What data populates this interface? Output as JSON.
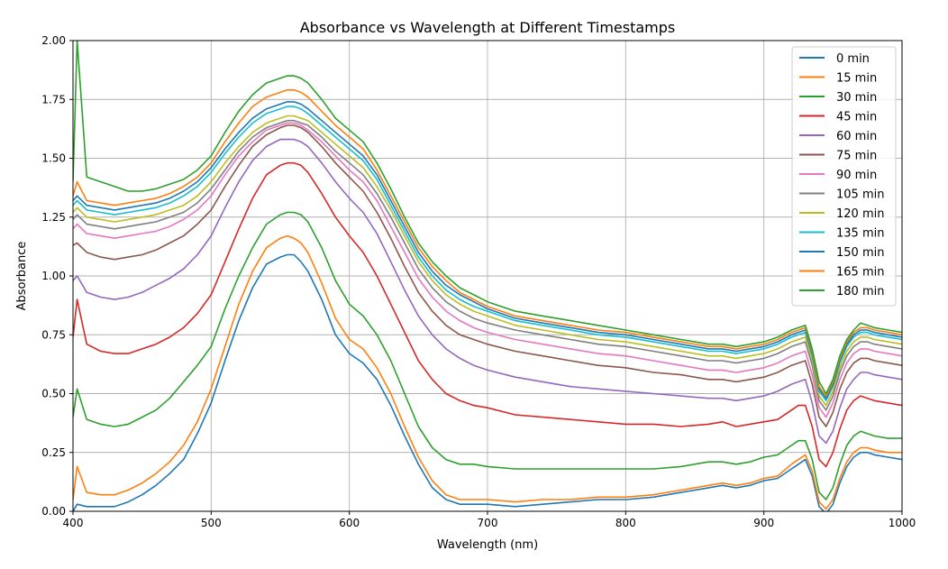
{
  "chart_data": {
    "type": "line",
    "title": "Absorbance vs Wavelength at Different Timestamps",
    "xlabel": "Wavelength (nm)",
    "ylabel": "Absorbance",
    "xlim": [
      400,
      1000
    ],
    "ylim": [
      0,
      2
    ],
    "x_ticks": [
      400,
      500,
      600,
      700,
      800,
      900,
      1000
    ],
    "x_tick_labels": [
      "400",
      "500",
      "600",
      "700",
      "800",
      "900",
      "1000"
    ],
    "y_ticks": [
      0,
      0.25,
      0.5,
      0.75,
      1.0,
      1.25,
      1.5,
      1.75,
      2.0
    ],
    "y_tick_labels": [
      "0.00",
      "0.25",
      "0.50",
      "0.75",
      "1.00",
      "1.25",
      "1.50",
      "1.75",
      "2.00"
    ],
    "grid": true,
    "legend_position": "top-right",
    "x": [
      400,
      403,
      410,
      420,
      430,
      440,
      450,
      460,
      470,
      480,
      490,
      500,
      510,
      520,
      530,
      540,
      550,
      555,
      560,
      565,
      570,
      580,
      590,
      600,
      610,
      620,
      630,
      640,
      650,
      660,
      670,
      680,
      690,
      700,
      720,
      740,
      760,
      780,
      800,
      820,
      840,
      860,
      870,
      880,
      890,
      900,
      910,
      920,
      925,
      930,
      935,
      940,
      945,
      950,
      955,
      960,
      965,
      970,
      975,
      980,
      990,
      1000
    ],
    "series": [
      {
        "name": "0 min",
        "color": "#1f77b4",
        "values": [
          0.0,
          0.03,
          0.02,
          0.02,
          0.02,
          0.04,
          0.07,
          0.11,
          0.16,
          0.22,
          0.33,
          0.46,
          0.64,
          0.81,
          0.95,
          1.05,
          1.08,
          1.09,
          1.09,
          1.06,
          1.02,
          0.9,
          0.75,
          0.67,
          0.63,
          0.56,
          0.45,
          0.32,
          0.2,
          0.1,
          0.05,
          0.03,
          0.03,
          0.03,
          0.02,
          0.03,
          0.04,
          0.05,
          0.05,
          0.06,
          0.08,
          0.1,
          0.11,
          0.1,
          0.11,
          0.13,
          0.14,
          0.18,
          0.2,
          0.22,
          0.15,
          0.02,
          -0.01,
          0.03,
          0.12,
          0.19,
          0.23,
          0.25,
          0.25,
          0.24,
          0.23,
          0.22
        ]
      },
      {
        "name": "15 min",
        "color": "#ff7f0e",
        "values": [
          0.05,
          0.19,
          0.08,
          0.07,
          0.07,
          0.09,
          0.12,
          0.16,
          0.21,
          0.28,
          0.38,
          0.52,
          0.7,
          0.88,
          1.02,
          1.12,
          1.16,
          1.17,
          1.16,
          1.14,
          1.1,
          0.97,
          0.82,
          0.73,
          0.69,
          0.61,
          0.5,
          0.36,
          0.23,
          0.13,
          0.07,
          0.05,
          0.05,
          0.05,
          0.04,
          0.05,
          0.05,
          0.06,
          0.06,
          0.07,
          0.09,
          0.11,
          0.12,
          0.11,
          0.12,
          0.14,
          0.15,
          0.2,
          0.22,
          0.24,
          0.17,
          0.04,
          0.01,
          0.05,
          0.14,
          0.21,
          0.25,
          0.27,
          0.27,
          0.26,
          0.25,
          0.25
        ]
      },
      {
        "name": "30 min",
        "color": "#2ca02c",
        "values": [
          0.4,
          0.52,
          0.39,
          0.37,
          0.36,
          0.37,
          0.4,
          0.43,
          0.48,
          0.55,
          0.62,
          0.7,
          0.86,
          1.0,
          1.12,
          1.22,
          1.26,
          1.27,
          1.27,
          1.26,
          1.23,
          1.12,
          0.98,
          0.88,
          0.83,
          0.75,
          0.64,
          0.5,
          0.36,
          0.27,
          0.22,
          0.2,
          0.2,
          0.19,
          0.18,
          0.18,
          0.18,
          0.18,
          0.18,
          0.18,
          0.19,
          0.21,
          0.21,
          0.2,
          0.21,
          0.23,
          0.24,
          0.28,
          0.3,
          0.3,
          0.22,
          0.08,
          0.05,
          0.1,
          0.2,
          0.28,
          0.32,
          0.34,
          0.33,
          0.32,
          0.31,
          0.31
        ]
      },
      {
        "name": "45 min",
        "color": "#d62728",
        "values": [
          0.74,
          0.9,
          0.71,
          0.68,
          0.67,
          0.67,
          0.69,
          0.71,
          0.74,
          0.78,
          0.84,
          0.92,
          1.06,
          1.2,
          1.33,
          1.43,
          1.47,
          1.48,
          1.48,
          1.47,
          1.44,
          1.35,
          1.25,
          1.17,
          1.1,
          1.0,
          0.88,
          0.76,
          0.64,
          0.56,
          0.5,
          0.47,
          0.45,
          0.44,
          0.41,
          0.4,
          0.39,
          0.38,
          0.37,
          0.37,
          0.36,
          0.37,
          0.38,
          0.36,
          0.37,
          0.38,
          0.39,
          0.43,
          0.45,
          0.45,
          0.36,
          0.22,
          0.19,
          0.25,
          0.35,
          0.43,
          0.47,
          0.49,
          0.48,
          0.47,
          0.46,
          0.45
        ]
      },
      {
        "name": "60 min",
        "color": "#9467bd",
        "values": [
          0.98,
          1.0,
          0.93,
          0.91,
          0.9,
          0.91,
          0.93,
          0.96,
          0.99,
          1.03,
          1.09,
          1.17,
          1.29,
          1.4,
          1.49,
          1.55,
          1.58,
          1.58,
          1.58,
          1.57,
          1.55,
          1.48,
          1.4,
          1.33,
          1.27,
          1.18,
          1.06,
          0.94,
          0.83,
          0.75,
          0.69,
          0.65,
          0.62,
          0.6,
          0.57,
          0.55,
          0.53,
          0.52,
          0.51,
          0.5,
          0.49,
          0.48,
          0.48,
          0.47,
          0.48,
          0.49,
          0.51,
          0.54,
          0.55,
          0.56,
          0.46,
          0.32,
          0.29,
          0.34,
          0.44,
          0.52,
          0.56,
          0.59,
          0.59,
          0.58,
          0.57,
          0.56
        ]
      },
      {
        "name": "75 min",
        "color": "#8c564b",
        "values": [
          1.13,
          1.14,
          1.1,
          1.08,
          1.07,
          1.08,
          1.09,
          1.11,
          1.14,
          1.17,
          1.22,
          1.28,
          1.38,
          1.47,
          1.55,
          1.6,
          1.63,
          1.64,
          1.64,
          1.63,
          1.61,
          1.55,
          1.48,
          1.42,
          1.36,
          1.27,
          1.16,
          1.04,
          0.93,
          0.85,
          0.79,
          0.75,
          0.73,
          0.71,
          0.68,
          0.66,
          0.64,
          0.62,
          0.61,
          0.59,
          0.58,
          0.56,
          0.56,
          0.55,
          0.56,
          0.57,
          0.59,
          0.62,
          0.63,
          0.64,
          0.54,
          0.4,
          0.36,
          0.42,
          0.52,
          0.59,
          0.63,
          0.65,
          0.65,
          0.64,
          0.63,
          0.62
        ]
      },
      {
        "name": "90 min",
        "color": "#e377c2",
        "values": [
          1.2,
          1.22,
          1.18,
          1.17,
          1.16,
          1.17,
          1.18,
          1.19,
          1.21,
          1.24,
          1.28,
          1.34,
          1.43,
          1.51,
          1.57,
          1.62,
          1.64,
          1.65,
          1.65,
          1.64,
          1.62,
          1.57,
          1.51,
          1.45,
          1.4,
          1.32,
          1.21,
          1.1,
          0.99,
          0.91,
          0.85,
          0.81,
          0.78,
          0.76,
          0.73,
          0.71,
          0.69,
          0.67,
          0.66,
          0.64,
          0.62,
          0.6,
          0.6,
          0.59,
          0.6,
          0.61,
          0.63,
          0.66,
          0.67,
          0.68,
          0.58,
          0.44,
          0.4,
          0.46,
          0.56,
          0.63,
          0.67,
          0.69,
          0.69,
          0.68,
          0.67,
          0.66
        ]
      },
      {
        "name": "105 min",
        "color": "#7f7f7f",
        "values": [
          1.24,
          1.26,
          1.22,
          1.21,
          1.2,
          1.21,
          1.22,
          1.23,
          1.25,
          1.27,
          1.31,
          1.37,
          1.45,
          1.53,
          1.59,
          1.63,
          1.65,
          1.66,
          1.66,
          1.65,
          1.64,
          1.59,
          1.53,
          1.48,
          1.43,
          1.35,
          1.25,
          1.14,
          1.03,
          0.95,
          0.89,
          0.85,
          0.82,
          0.8,
          0.77,
          0.75,
          0.73,
          0.71,
          0.7,
          0.68,
          0.66,
          0.64,
          0.64,
          0.63,
          0.64,
          0.65,
          0.67,
          0.7,
          0.71,
          0.72,
          0.62,
          0.47,
          0.43,
          0.49,
          0.59,
          0.66,
          0.7,
          0.72,
          0.72,
          0.71,
          0.7,
          0.69
        ]
      },
      {
        "name": "120 min",
        "color": "#bcbd22",
        "values": [
          1.27,
          1.29,
          1.25,
          1.24,
          1.23,
          1.24,
          1.25,
          1.26,
          1.28,
          1.3,
          1.34,
          1.4,
          1.48,
          1.55,
          1.61,
          1.65,
          1.67,
          1.68,
          1.68,
          1.67,
          1.66,
          1.61,
          1.56,
          1.51,
          1.46,
          1.38,
          1.28,
          1.17,
          1.06,
          0.98,
          0.92,
          0.88,
          0.85,
          0.83,
          0.79,
          0.77,
          0.75,
          0.73,
          0.72,
          0.7,
          0.68,
          0.66,
          0.66,
          0.65,
          0.66,
          0.67,
          0.69,
          0.72,
          0.73,
          0.74,
          0.64,
          0.49,
          0.45,
          0.51,
          0.61,
          0.68,
          0.72,
          0.74,
          0.74,
          0.73,
          0.72,
          0.71
        ]
      },
      {
        "name": "135 min",
        "color": "#17becf",
        "values": [
          1.3,
          1.32,
          1.28,
          1.27,
          1.26,
          1.27,
          1.28,
          1.29,
          1.31,
          1.34,
          1.38,
          1.44,
          1.52,
          1.59,
          1.65,
          1.69,
          1.71,
          1.72,
          1.72,
          1.71,
          1.69,
          1.64,
          1.59,
          1.54,
          1.49,
          1.41,
          1.3,
          1.19,
          1.08,
          1.0,
          0.94,
          0.9,
          0.87,
          0.85,
          0.81,
          0.79,
          0.77,
          0.75,
          0.74,
          0.72,
          0.7,
          0.68,
          0.68,
          0.67,
          0.68,
          0.69,
          0.71,
          0.74,
          0.75,
          0.76,
          0.66,
          0.51,
          0.47,
          0.53,
          0.63,
          0.7,
          0.74,
          0.76,
          0.76,
          0.75,
          0.74,
          0.73
        ]
      },
      {
        "name": "150 min",
        "color": "#1f77b4",
        "values": [
          1.32,
          1.34,
          1.3,
          1.29,
          1.28,
          1.29,
          1.3,
          1.31,
          1.33,
          1.36,
          1.4,
          1.46,
          1.54,
          1.61,
          1.67,
          1.71,
          1.73,
          1.74,
          1.74,
          1.73,
          1.71,
          1.66,
          1.61,
          1.56,
          1.51,
          1.43,
          1.32,
          1.21,
          1.1,
          1.02,
          0.96,
          0.92,
          0.89,
          0.86,
          0.82,
          0.8,
          0.78,
          0.76,
          0.75,
          0.73,
          0.71,
          0.69,
          0.69,
          0.68,
          0.69,
          0.7,
          0.72,
          0.75,
          0.76,
          0.77,
          0.67,
          0.52,
          0.48,
          0.54,
          0.64,
          0.71,
          0.75,
          0.77,
          0.77,
          0.76,
          0.75,
          0.74
        ]
      },
      {
        "name": "165 min",
        "color": "#ff7f0e",
        "values": [
          1.34,
          1.4,
          1.32,
          1.31,
          1.3,
          1.31,
          1.32,
          1.33,
          1.35,
          1.38,
          1.42,
          1.48,
          1.57,
          1.65,
          1.72,
          1.76,
          1.78,
          1.79,
          1.79,
          1.78,
          1.76,
          1.7,
          1.64,
          1.59,
          1.54,
          1.45,
          1.34,
          1.23,
          1.12,
          1.04,
          0.98,
          0.93,
          0.9,
          0.87,
          0.83,
          0.81,
          0.79,
          0.77,
          0.76,
          0.74,
          0.72,
          0.7,
          0.7,
          0.69,
          0.7,
          0.71,
          0.73,
          0.76,
          0.77,
          0.78,
          0.68,
          0.53,
          0.49,
          0.55,
          0.65,
          0.72,
          0.76,
          0.78,
          0.78,
          0.77,
          0.76,
          0.75
        ]
      },
      {
        "name": "180 min",
        "color": "#2ca02c",
        "values": [
          1.4,
          2.0,
          1.42,
          1.4,
          1.38,
          1.36,
          1.36,
          1.37,
          1.39,
          1.41,
          1.45,
          1.51,
          1.61,
          1.7,
          1.77,
          1.82,
          1.84,
          1.85,
          1.85,
          1.84,
          1.82,
          1.75,
          1.67,
          1.62,
          1.57,
          1.48,
          1.37,
          1.25,
          1.14,
          1.06,
          1.0,
          0.95,
          0.92,
          0.89,
          0.85,
          0.83,
          0.81,
          0.79,
          0.77,
          0.75,
          0.73,
          0.71,
          0.71,
          0.7,
          0.71,
          0.72,
          0.74,
          0.77,
          0.78,
          0.79,
          0.69,
          0.55,
          0.5,
          0.56,
          0.66,
          0.73,
          0.77,
          0.8,
          0.79,
          0.78,
          0.77,
          0.76
        ]
      }
    ]
  }
}
